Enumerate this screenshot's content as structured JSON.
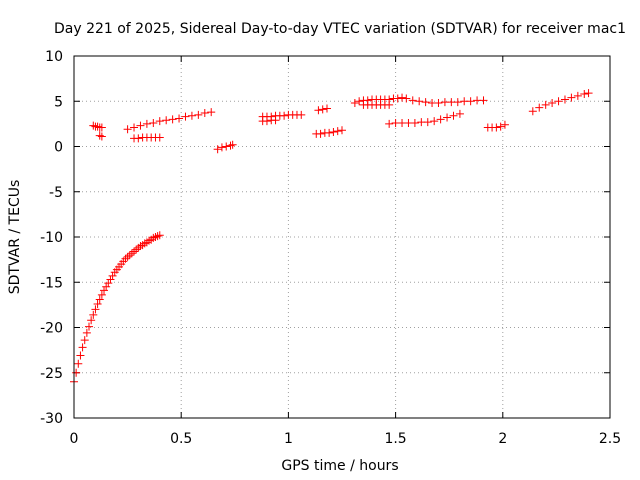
{
  "chart_data": {
    "type": "scatter",
    "title": "Day 221 of 2025, Sidereal Day-to-day VTEC variation (SDTVAR) for receiver mac1",
    "xlabel": "GPS time / hours",
    "ylabel": "SDTVAR / TECUs",
    "xlim": [
      0,
      2.5
    ],
    "ylim": [
      -30,
      10
    ],
    "x_ticks": [
      0,
      0.5,
      1,
      1.5,
      2,
      2.5
    ],
    "x_tick_labels": [
      "0",
      "0.5",
      "1",
      "1.5",
      "2",
      "2.5"
    ],
    "y_ticks": [
      10,
      5,
      0,
      -5,
      -10,
      -15,
      -20,
      -25,
      -30
    ],
    "y_tick_labels": [
      "10",
      "5",
      "0",
      "-5",
      "-10",
      "-15",
      "-20",
      "-25",
      "-30"
    ],
    "grid": true,
    "marker": "plus",
    "color": "#ff0000",
    "series": [
      {
        "name": "segment-1",
        "x": [
          0.0,
          0.01,
          0.02,
          0.03,
          0.04,
          0.05,
          0.06,
          0.07,
          0.08,
          0.09,
          0.1,
          0.11,
          0.12,
          0.13,
          0.14,
          0.15,
          0.16,
          0.17,
          0.18,
          0.19,
          0.2,
          0.21,
          0.22,
          0.23,
          0.24,
          0.25,
          0.26,
          0.27,
          0.28,
          0.29,
          0.3,
          0.31,
          0.32,
          0.33,
          0.34,
          0.35,
          0.36,
          0.37,
          0.38,
          0.39,
          0.4
        ],
        "y": [
          -26.0,
          -25.0,
          -24.0,
          -23.1,
          -22.2,
          -21.4,
          -20.6,
          -19.9,
          -19.2,
          -18.6,
          -18.0,
          -17.4,
          -16.9,
          -16.4,
          -15.9,
          -15.5,
          -15.1,
          -14.7,
          -14.3,
          -13.9,
          -13.6,
          -13.3,
          -13.0,
          -12.7,
          -12.4,
          -12.2,
          -12.0,
          -11.8,
          -11.6,
          -11.4,
          -11.2,
          -11.0,
          -10.9,
          -10.7,
          -10.6,
          -10.4,
          -10.3,
          -10.1,
          -10.0,
          -9.9,
          -9.8
        ]
      },
      {
        "name": "segment-2",
        "x": [
          0.09,
          0.1,
          0.11,
          0.12,
          0.13
        ],
        "y": [
          2.3,
          2.2,
          2.2,
          2.1,
          2.1
        ]
      },
      {
        "name": "segment-3",
        "x": [
          0.12,
          0.13
        ],
        "y": [
          1.2,
          1.1
        ]
      },
      {
        "name": "segment-4",
        "x": [
          0.25,
          0.28,
          0.31,
          0.34,
          0.37,
          0.4,
          0.43,
          0.46,
          0.49,
          0.52,
          0.55,
          0.58,
          0.61,
          0.64
        ],
        "y": [
          1.9,
          2.1,
          2.3,
          2.5,
          2.6,
          2.8,
          2.9,
          3.0,
          3.1,
          3.3,
          3.4,
          3.5,
          3.7,
          3.8
        ]
      },
      {
        "name": "segment-5",
        "x": [
          0.28,
          0.3,
          0.32,
          0.34,
          0.36,
          0.38,
          0.4
        ],
        "y": [
          0.9,
          0.9,
          1.0,
          1.0,
          1.0,
          1.0,
          1.0
        ]
      },
      {
        "name": "segment-6",
        "x": [
          0.67,
          0.69,
          0.71,
          0.73,
          0.74
        ],
        "y": [
          -0.3,
          -0.1,
          0.0,
          0.1,
          0.2
        ]
      },
      {
        "name": "segment-7",
        "x": [
          0.88,
          0.9,
          0.92,
          0.94,
          0.96,
          0.98,
          1.0,
          1.02,
          1.04,
          1.06
        ],
        "y": [
          3.3,
          3.3,
          3.3,
          3.4,
          3.4,
          3.4,
          3.5,
          3.5,
          3.5,
          3.5
        ]
      },
      {
        "name": "segment-8",
        "x": [
          0.88,
          0.9,
          0.92,
          0.94
        ],
        "y": [
          2.8,
          2.8,
          2.9,
          2.9
        ]
      },
      {
        "name": "segment-9",
        "x": [
          1.14,
          1.16,
          1.18
        ],
        "y": [
          4.0,
          4.1,
          4.2
        ]
      },
      {
        "name": "segment-10",
        "x": [
          1.13,
          1.15,
          1.17,
          1.19,
          1.21,
          1.23,
          1.25
        ],
        "y": [
          1.4,
          1.4,
          1.5,
          1.5,
          1.6,
          1.7,
          1.8
        ]
      },
      {
        "name": "segment-11",
        "x": [
          1.31,
          1.33,
          1.35,
          1.37,
          1.39,
          1.41,
          1.43,
          1.45,
          1.47,
          1.49,
          1.51,
          1.53,
          1.55
        ],
        "y": [
          4.8,
          5.0,
          5.1,
          5.1,
          5.2,
          5.2,
          5.2,
          5.2,
          5.2,
          5.3,
          5.3,
          5.4,
          5.3
        ]
      },
      {
        "name": "segment-12",
        "x": [
          1.35,
          1.37,
          1.39,
          1.41,
          1.43,
          1.45,
          1.47
        ],
        "y": [
          4.6,
          4.6,
          4.6,
          4.6,
          4.6,
          4.6,
          4.6
        ]
      },
      {
        "name": "segment-13",
        "x": [
          1.58,
          1.61,
          1.64,
          1.67,
          1.7,
          1.73,
          1.76,
          1.79,
          1.82,
          1.85,
          1.88,
          1.91
        ],
        "y": [
          5.1,
          5.0,
          4.9,
          4.8,
          4.8,
          4.9,
          4.9,
          4.9,
          5.0,
          5.0,
          5.1,
          5.1
        ]
      },
      {
        "name": "segment-14",
        "x": [
          1.47,
          1.5,
          1.53,
          1.56,
          1.59,
          1.62,
          1.65,
          1.68,
          1.71,
          1.74,
          1.77,
          1.8
        ],
        "y": [
          2.5,
          2.6,
          2.6,
          2.6,
          2.6,
          2.7,
          2.7,
          2.8,
          3.0,
          3.2,
          3.4,
          3.6
        ]
      },
      {
        "name": "segment-15",
        "x": [
          1.93,
          1.95,
          1.97,
          1.99,
          2.01
        ],
        "y": [
          2.1,
          2.1,
          2.1,
          2.2,
          2.4
        ]
      },
      {
        "name": "segment-16",
        "x": [
          2.14,
          2.17,
          2.2,
          2.23,
          2.26,
          2.29,
          2.32,
          2.35,
          2.38,
          2.4
        ],
        "y": [
          3.9,
          4.3,
          4.6,
          4.8,
          5.0,
          5.2,
          5.4,
          5.6,
          5.8,
          5.9
        ]
      }
    ]
  }
}
